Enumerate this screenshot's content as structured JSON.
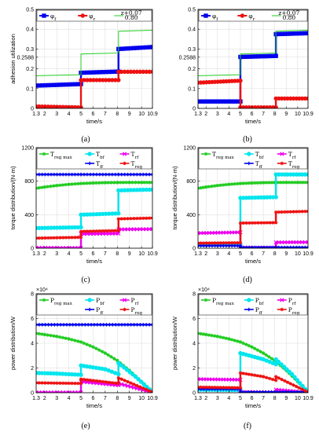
{
  "chart_data": [
    {
      "type": "line",
      "panel_label": "(a)",
      "xlabel": "time/s",
      "ylabel": "adhesion utilization",
      "xlim": [
        1.3,
        10.9
      ],
      "ylim": [
        0,
        0.5
      ],
      "xticks": [
        1.3,
        2,
        3,
        4,
        5,
        6,
        7,
        8,
        9,
        10,
        10.9
      ],
      "xtick_labels": [
        "1.3",
        "2",
        "3",
        "4",
        "5",
        "6",
        "7",
        "8",
        "9",
        "10",
        "10.9"
      ],
      "yticks": [
        0,
        0.1,
        0.2,
        0.2588,
        0.3,
        0.4,
        0.5
      ],
      "ytick_labels": [
        "0",
        "0.1",
        "0.2",
        "0.2588",
        "0.3",
        "0.4",
        "0.5"
      ],
      "grid": true,
      "legend_position": "top-inside",
      "series": [
        {
          "name": "φf",
          "color": "#0000ee",
          "marker": "square",
          "x": [
            1.3,
            5.0,
            5.0,
            8.1,
            8.1,
            10.9
          ],
          "y": [
            0.115,
            0.123,
            0.18,
            0.186,
            0.3,
            0.31
          ]
        },
        {
          "name": "φr",
          "color": "#ee1111",
          "marker": "circle",
          "x": [
            1.3,
            5.0,
            5.0,
            8.1,
            8.1,
            10.9
          ],
          "y": [
            0.01,
            0.005,
            0.143,
            0.143,
            0.185,
            0.185
          ]
        },
        {
          "name": "z+0.07 / 0.80",
          "color": "#22cc22",
          "marker": "none",
          "x": [
            1.3,
            5.0,
            5.0,
            8.1,
            8.1,
            10.9
          ],
          "y": [
            0.165,
            0.17,
            0.275,
            0.28,
            0.39,
            0.395
          ]
        }
      ]
    },
    {
      "type": "line",
      "panel_label": "(b)",
      "xlabel": "time/s",
      "ylabel": "",
      "xlim": [
        1.3,
        10.9
      ],
      "ylim": [
        0,
        0.5
      ],
      "xticks": [
        1.3,
        2,
        3,
        4,
        5,
        6,
        7,
        8,
        9,
        10,
        10.9
      ],
      "xtick_labels": [
        "1.3",
        "2",
        "3",
        "4",
        "5",
        "6",
        "7",
        "8",
        "9",
        "10",
        "10.9"
      ],
      "yticks": [
        0,
        0.1,
        0.2,
        0.2588,
        0.3,
        0.4,
        0.5
      ],
      "ytick_labels": [
        "0",
        "0.1",
        "0.2",
        "0.2588",
        "0.3",
        "0.4",
        "0.5"
      ],
      "grid": true,
      "legend_position": "top-inside",
      "series": [
        {
          "name": "φf",
          "color": "#0000ee",
          "marker": "square",
          "x": [
            1.3,
            5.0,
            5.0,
            8.1,
            8.1,
            10.9
          ],
          "y": [
            0.035,
            0.035,
            0.26,
            0.265,
            0.375,
            0.38
          ]
        },
        {
          "name": "φr",
          "color": "#ee1111",
          "marker": "circle",
          "x": [
            1.3,
            5.0,
            5.0,
            8.1,
            8.1,
            10.9
          ],
          "y": [
            0.13,
            0.14,
            0.005,
            0.005,
            0.05,
            0.05
          ]
        },
        {
          "name": "z+0.07 / 0.80",
          "color": "#22cc22",
          "marker": "none",
          "x": [
            1.3,
            5.0,
            5.0,
            8.1,
            8.1,
            10.9
          ],
          "y": [
            0.165,
            0.17,
            0.275,
            0.28,
            0.39,
            0.395
          ]
        }
      ]
    },
    {
      "type": "line",
      "panel_label": "(c)",
      "xlabel": "time/s",
      "ylabel": "torque distribution/(N·m)",
      "xlim": [
        1.3,
        10.9
      ],
      "ylim": [
        0,
        1200
      ],
      "xticks": [
        1.3,
        2,
        3,
        4,
        5,
        6,
        7,
        8,
        9,
        10,
        10.9
      ],
      "xtick_labels": [
        "1.3",
        "2",
        "3",
        "4",
        "5",
        "6",
        "7",
        "8",
        "9",
        "10",
        "10.9"
      ],
      "yticks": [
        0,
        400,
        800,
        1200
      ],
      "ytick_labels": [
        "0",
        "400",
        "800",
        "1200"
      ],
      "grid": true,
      "legend_position": "top-inside",
      "series": [
        {
          "name": "Treg max",
          "color": "#22cc22",
          "marker": "star",
          "x": [
            1.3,
            2,
            3,
            4,
            5,
            6,
            7,
            8,
            9,
            10,
            10.9
          ],
          "y": [
            715,
            730,
            748,
            762,
            772,
            778,
            782,
            784,
            785,
            785,
            785
          ]
        },
        {
          "name": "Tbf",
          "color": "#00e5ee",
          "marker": "circle",
          "x": [
            1.3,
            5.0,
            5.0,
            8.1,
            8.1,
            10.9
          ],
          "y": [
            240,
            250,
            400,
            415,
            690,
            700
          ]
        },
        {
          "name": "Trf",
          "color": "#ee00ee",
          "marker": "x",
          "x": [
            1.3,
            5.0,
            5.0,
            8.1,
            8.1,
            10.9
          ],
          "y": [
            5,
            3,
            170,
            175,
            225,
            228
          ]
        },
        {
          "name": "Tff",
          "color": "#0000ee",
          "marker": "plus",
          "x": [
            1.3,
            5.0,
            5.0,
            8.1,
            8.1,
            10.9
          ],
          "y": [
            880,
            880,
            880,
            880,
            880,
            880
          ]
        },
        {
          "name": "Treg",
          "color": "#ee1111",
          "marker": "star",
          "x": [
            1.3,
            5.0,
            5.0,
            8.1,
            8.1,
            10.9
          ],
          "y": [
            120,
            130,
            200,
            210,
            350,
            360
          ]
        }
      ]
    },
    {
      "type": "line",
      "panel_label": "(d)",
      "xlabel": "time/s",
      "ylabel": "torque distribution/(N·m)",
      "xlim": [
        1.3,
        10.9
      ],
      "ylim": [
        0,
        1200
      ],
      "xticks": [
        1.3,
        2,
        3,
        4,
        5,
        6,
        7,
        8,
        9,
        10,
        10.9
      ],
      "xtick_labels": [
        "1.3",
        "2",
        "3",
        "4",
        "5",
        "6",
        "7",
        "8",
        "9",
        "10",
        "10.9"
      ],
      "yticks": [
        0,
        400,
        800,
        1200
      ],
      "ytick_labels": [
        "0",
        "400",
        "800",
        "1200"
      ],
      "grid": true,
      "legend_position": "top-inside",
      "series": [
        {
          "name": "Treg max",
          "color": "#22cc22",
          "marker": "star",
          "x": [
            1.3,
            2,
            3,
            4,
            5,
            6,
            7,
            8,
            9,
            10,
            10.9
          ],
          "y": [
            715,
            730,
            748,
            762,
            772,
            778,
            782,
            784,
            785,
            785,
            785
          ]
        },
        {
          "name": "Tbf",
          "color": "#00e5ee",
          "marker": "circle",
          "x": [
            1.3,
            5.0,
            5.0,
            8.1,
            8.1,
            10.9
          ],
          "y": [
            40,
            45,
            600,
            610,
            880,
            880
          ]
        },
        {
          "name": "Trf",
          "color": "#ee00ee",
          "marker": "x",
          "x": [
            1.3,
            5.0,
            5.0,
            8.1,
            8.1,
            10.9
          ],
          "y": [
            180,
            190,
            5,
            5,
            70,
            72
          ]
        },
        {
          "name": "Tff",
          "color": "#0000ee",
          "marker": "plus",
          "x": [
            1.3,
            5.0,
            5.0,
            8.1,
            8.1,
            10.9
          ],
          "y": [
            30,
            30,
            10,
            10,
            10,
            10
          ]
        },
        {
          "name": "Treg",
          "color": "#ee1111",
          "marker": "star",
          "x": [
            1.3,
            5.0,
            5.0,
            8.1,
            8.1,
            10.9
          ],
          "y": [
            60,
            65,
            300,
            305,
            430,
            440
          ]
        }
      ]
    },
    {
      "type": "line",
      "panel_label": "(e)",
      "xlabel": "time/s",
      "ylabel": "power distribution/W",
      "exponent_label": "×10⁴",
      "xlim": [
        1.3,
        10.9
      ],
      "ylim": [
        0,
        8
      ],
      "xticks": [
        1.3,
        2,
        3,
        4,
        5,
        6,
        7,
        8,
        9,
        10,
        10.9
      ],
      "xtick_labels": [
        "1.3",
        "2",
        "3",
        "4",
        "5",
        "6",
        "7",
        "8",
        "9",
        "10",
        "10.9"
      ],
      "yticks": [
        0,
        2,
        4,
        6,
        8
      ],
      "ytick_labels": [
        "0",
        "2",
        "4",
        "6",
        "8"
      ],
      "grid": true,
      "legend_position": "top-inside",
      "series": [
        {
          "name": "Preg max",
          "color": "#22cc22",
          "marker": "star",
          "x": [
            1.3,
            2,
            3,
            4,
            5,
            6,
            7,
            8,
            9,
            10,
            10.9
          ],
          "y": [
            4.8,
            4.7,
            4.55,
            4.35,
            4.1,
            3.7,
            3.2,
            2.6,
            1.8,
            0.9,
            0.1
          ]
        },
        {
          "name": "Pbf",
          "color": "#00e5ee",
          "marker": "circle",
          "x": [
            1.3,
            3,
            5.0,
            5.0,
            7,
            8.1,
            8.1,
            9.5,
            10.9
          ],
          "y": [
            1.6,
            1.55,
            1.45,
            2.2,
            1.9,
            1.5,
            2.4,
            1.3,
            0.05
          ]
        },
        {
          "name": "Prf",
          "color": "#ee00ee",
          "marker": "x",
          "x": [
            1.3,
            5.0,
            5.0,
            8.1,
            8.1,
            10.9
          ],
          "y": [
            0.02,
            0.02,
            0.9,
            0.6,
            0.75,
            0.02
          ]
        },
        {
          "name": "Pff",
          "color": "#0000ee",
          "marker": "plus",
          "x": [
            1.3,
            10.9
          ],
          "y": [
            5.5,
            5.5
          ]
        },
        {
          "name": "Preg",
          "color": "#ee1111",
          "marker": "star",
          "x": [
            1.3,
            5.0,
            5.0,
            8.1,
            8.1,
            10.9
          ],
          "y": [
            0.8,
            0.75,
            1.1,
            0.75,
            1.2,
            0.05
          ]
        }
      ]
    },
    {
      "type": "line",
      "panel_label": "(f)",
      "xlabel": "time/s",
      "ylabel": "power distribution/W",
      "exponent_label": "×10⁴",
      "xlim": [
        1.3,
        10.9
      ],
      "ylim": [
        0,
        8
      ],
      "xticks": [
        1.3,
        2,
        3,
        4,
        5,
        6,
        7,
        8,
        9,
        10,
        10.9
      ],
      "xtick_labels": [
        "1.3",
        "2",
        "3",
        "4",
        "5",
        "6",
        "7",
        "8",
        "9",
        "10",
        "10.9"
      ],
      "yticks": [
        0,
        2,
        4,
        6,
        8
      ],
      "ytick_labels": [
        "0",
        "2",
        "4",
        "6",
        "8"
      ],
      "grid": true,
      "legend_position": "top-inside",
      "series": [
        {
          "name": "Preg max",
          "color": "#22cc22",
          "marker": "star",
          "x": [
            1.3,
            2,
            3,
            4,
            5,
            6,
            7,
            8,
            9,
            10,
            10.9
          ],
          "y": [
            4.8,
            4.7,
            4.55,
            4.35,
            4.1,
            3.7,
            3.2,
            2.6,
            1.8,
            0.9,
            0.1
          ]
        },
        {
          "name": "Pbf",
          "color": "#00e5ee",
          "marker": "circle",
          "x": [
            1.3,
            5.0,
            5.0,
            7,
            8.1,
            8.1,
            9.5,
            10.9
          ],
          "y": [
            0.25,
            0.22,
            3.2,
            2.7,
            2.3,
            2.7,
            1.5,
            0.05
          ]
        },
        {
          "name": "Prf",
          "color": "#ee00ee",
          "marker": "x",
          "x": [
            1.3,
            5.0,
            5.0,
            8.1,
            8.1,
            10.9
          ],
          "y": [
            1.1,
            1.05,
            0.05,
            0.05,
            0.25,
            0.02
          ]
        },
        {
          "name": "Pff",
          "color": "#0000ee",
          "marker": "plus",
          "x": [
            1.3,
            5.0,
            5.0,
            10.9
          ],
          "y": [
            0.3,
            0.3,
            0.05,
            0.05
          ]
        },
        {
          "name": "Preg",
          "color": "#ee1111",
          "marker": "star",
          "x": [
            1.3,
            5.0,
            5.0,
            7,
            8.1,
            8.1,
            10.9
          ],
          "y": [
            0.45,
            0.4,
            1.6,
            1.3,
            1.0,
            1.3,
            0.05
          ]
        }
      ]
    }
  ]
}
